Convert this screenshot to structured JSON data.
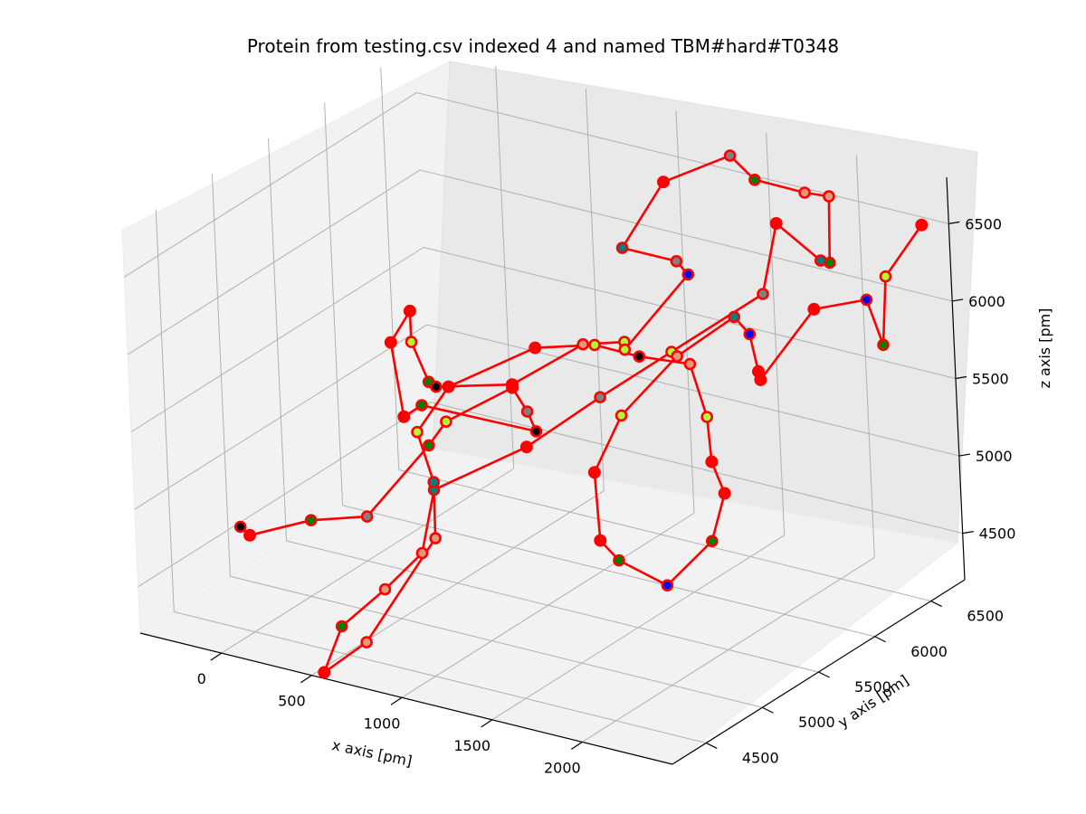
{
  "chart_data": {
    "type": "scatter",
    "subtype": "3d-line",
    "title": "Protein from testing.csv indexed 4 and named TBM#hard#T0348",
    "xlabel": "x axis [pm]",
    "ylabel": "y axis [pm]",
    "zlabel": "z axis [pm]",
    "xticks": [
      "0",
      "500",
      "1000",
      "1500",
      "2000"
    ],
    "yticks": [
      "4500",
      "5000",
      "5500",
      "6000",
      "6500"
    ],
    "zticks": [
      "4500",
      "5000",
      "5500",
      "6000",
      "6500"
    ],
    "grid": true,
    "line_color": "#ff0000",
    "marker_edge_color": "#ff0000",
    "marker_fill_colors": [
      "#ff0000",
      "#008000",
      "#808080",
      "#adff2f",
      "#008080",
      "#e9967a",
      "#0000ff",
      "#000000",
      "#c0c0c0"
    ],
    "series": [
      {
        "points": [
          {
            "x": -380,
            "y": 5000,
            "z": 4540,
            "c": "#000000"
          },
          {
            "x": -330,
            "y": 5000,
            "z": 4500,
            "c": "#ff0000"
          },
          {
            "x": -80,
            "y": 5150,
            "z": 4600,
            "c": "#008000"
          },
          {
            "x": 170,
            "y": 5250,
            "z": 4650,
            "c": "#808080"
          },
          {
            "x": 470,
            "y": 5350,
            "z": 5150,
            "c": "#008000"
          },
          {
            "x": 540,
            "y": 5400,
            "z": 5300,
            "c": "#adff2f"
          },
          {
            "x": 790,
            "y": 5600,
            "z": 5500,
            "c": "#ff0000"
          },
          {
            "x": 900,
            "y": 5550,
            "z": 5400,
            "c": "#808080"
          },
          {
            "x": 1010,
            "y": 5450,
            "z": 5350,
            "c": "#000000"
          },
          {
            "x": 440,
            "y": 5350,
            "z": 5400,
            "c": "#008000"
          },
          {
            "x": 240,
            "y": 5500,
            "z": 5200,
            "c": "#ff0000"
          },
          {
            "x": 120,
            "y": 5600,
            "z": 5600,
            "c": "#ff0000"
          },
          {
            "x": 300,
            "y": 5500,
            "z": 5900,
            "c": "#ff0000"
          },
          {
            "x": 300,
            "y": 5500,
            "z": 5700,
            "c": "#adff2f"
          },
          {
            "x": 420,
            "y": 5450,
            "z": 5500,
            "c": "#008000"
          },
          {
            "x": 460,
            "y": 5450,
            "z": 5480,
            "c": "#000000"
          },
          {
            "x": 790,
            "y": 5600,
            "z": 5520,
            "c": "#ff0000"
          },
          {
            "x": 1100,
            "y": 5750,
            "z": 5800,
            "c": "#e9967a"
          },
          {
            "x": 1300,
            "y": 5800,
            "z": 5850,
            "c": "#adff2f"
          },
          {
            "x": 1300,
            "y": 5800,
            "z": 5800,
            "c": "#adff2f"
          },
          {
            "x": 1480,
            "y": 6100,
            "z": 6200,
            "c": "#0000ff"
          },
          {
            "x": 1450,
            "y": 6050,
            "z": 6300,
            "c": "#808080"
          },
          {
            "x": 1150,
            "y": 6050,
            "z": 6300,
            "c": "#008080"
          },
          {
            "x": 1300,
            "y": 6200,
            "z": 6700,
            "c": "#ff0000"
          },
          {
            "x": 1550,
            "y": 6400,
            "z": 6850,
            "c": "#808080"
          },
          {
            "x": 1650,
            "y": 6450,
            "z": 6700,
            "c": "#008000"
          },
          {
            "x": 1830,
            "y": 6600,
            "z": 6600,
            "c": "#e9967a"
          },
          {
            "x": 1900,
            "y": 6700,
            "z": 6550,
            "c": "#e9967a"
          },
          {
            "x": 1920,
            "y": 6650,
            "z": 6150,
            "c": "#008000"
          },
          {
            "x": 1870,
            "y": 6650,
            "z": 6150,
            "c": "#008080"
          },
          {
            "x": 1760,
            "y": 6450,
            "z": 6450,
            "c": "#ff0000"
          },
          {
            "x": 1700,
            "y": 6400,
            "z": 6000,
            "c": "#808080"
          },
          {
            "x": 1400,
            "y": 6050,
            "z": 5700,
            "c": "#adff2f"
          },
          {
            "x": 1150,
            "y": 5800,
            "z": 5450,
            "c": "#808080"
          },
          {
            "x": 920,
            "y": 5500,
            "z": 5200,
            "c": "#ff0000"
          },
          {
            "x": 520,
            "y": 5300,
            "z": 4900,
            "c": "#008080"
          },
          {
            "x": 470,
            "y": 5250,
            "z": 4500,
            "c": "#e9967a"
          },
          {
            "x": 350,
            "y": 5100,
            "z": 4300,
            "c": "#e9967a"
          },
          {
            "x": 260,
            "y": 4850,
            "z": 4150,
            "c": "#008000"
          },
          {
            "x": 280,
            "y": 4650,
            "z": 3950,
            "c": "#ff0000"
          },
          {
            "x": 460,
            "y": 4750,
            "z": 4150,
            "c": "#e9967a"
          },
          {
            "x": 580,
            "y": 5200,
            "z": 4650,
            "c": "#e9967a"
          },
          {
            "x": 520,
            "y": 5300,
            "z": 4950,
            "c": "#008080"
          },
          {
            "x": 440,
            "y": 5300,
            "z": 5250,
            "c": "#adff2f"
          },
          {
            "x": 530,
            "y": 5450,
            "z": 5500,
            "c": "#ff0000"
          },
          {
            "x": 830,
            "y": 5750,
            "z": 5700,
            "c": "#ff0000"
          },
          {
            "x": 1100,
            "y": 5850,
            "z": 5750,
            "c": "#adff2f"
          },
          {
            "x": 1250,
            "y": 6000,
            "z": 5650,
            "c": "#000000"
          },
          {
            "x": 1500,
            "y": 6050,
            "z": 5650,
            "c": "#e9967a"
          },
          {
            "x": 1550,
            "y": 6100,
            "z": 5300,
            "c": "#adff2f"
          },
          {
            "x": 1500,
            "y": 6200,
            "z": 4950,
            "c": "#ff0000"
          },
          {
            "x": 1500,
            "y": 6300,
            "z": 4700,
            "c": "#ff0000"
          },
          {
            "x": 1450,
            "y": 6250,
            "z": 4400,
            "c": "#008000"
          },
          {
            "x": 1350,
            "y": 6000,
            "z": 4200,
            "c": "#0000ff"
          },
          {
            "x": 1150,
            "y": 5900,
            "z": 4350,
            "c": "#008000"
          },
          {
            "x": 1050,
            "y": 5900,
            "z": 4450,
            "c": "#ff0000"
          },
          {
            "x": 1100,
            "y": 5800,
            "z": 4950,
            "c": "#ff0000"
          },
          {
            "x": 1200,
            "y": 5900,
            "z": 5300,
            "c": "#adff2f"
          },
          {
            "x": 1430,
            "y": 6050,
            "z": 5680,
            "c": "#e9967a"
          },
          {
            "x": 1630,
            "y": 6250,
            "z": 5900,
            "c": "#008080"
          },
          {
            "x": 1680,
            "y": 6300,
            "z": 5780,
            "c": "#0000ff"
          },
          {
            "x": 1720,
            "y": 6300,
            "z": 5550,
            "c": "#ff0000"
          },
          {
            "x": 1730,
            "y": 6300,
            "z": 5500,
            "c": "#ff0000"
          },
          {
            "x": 1950,
            "y": 6450,
            "z": 5950,
            "c": "#ff0000"
          },
          {
            "x": 2150,
            "y": 6600,
            "z": 6000,
            "c": "#0000ff"
          },
          {
            "x": 2200,
            "y": 6650,
            "z": 5700,
            "c": "#008000"
          },
          {
            "x": 2230,
            "y": 6650,
            "z": 6150,
            "c": "#adff2f"
          },
          {
            "x": 2380,
            "y": 6750,
            "z": 6480,
            "c": "#ff0000"
          }
        ]
      }
    ]
  }
}
